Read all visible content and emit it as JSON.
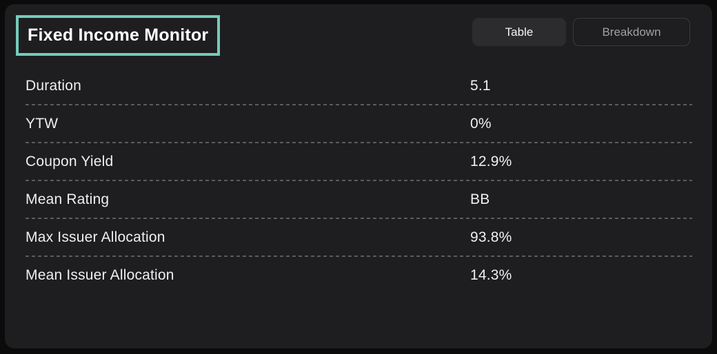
{
  "panel": {
    "title": "Fixed Income Monitor"
  },
  "tabs": [
    {
      "label": "Table",
      "active": true
    },
    {
      "label": "Breakdown",
      "active": false
    }
  ],
  "table": {
    "rows": [
      {
        "label": "Duration",
        "value": "5.1"
      },
      {
        "label": "YTW",
        "value": "0%"
      },
      {
        "label": "Coupon Yield",
        "value": "12.9%"
      },
      {
        "label": "Mean Rating",
        "value": "BB"
      },
      {
        "label": "Max Issuer Allocation",
        "value": "93.8%"
      },
      {
        "label": "Mean Issuer Allocation",
        "value": "14.3%"
      }
    ]
  },
  "colors": {
    "accent_teal": "#74ccba",
    "panel_bg": "#1e1e20",
    "outer_bg": "#0b0b0b",
    "tab_active_bg": "#2c2c2e",
    "row_divider": "#5c5c5c"
  }
}
